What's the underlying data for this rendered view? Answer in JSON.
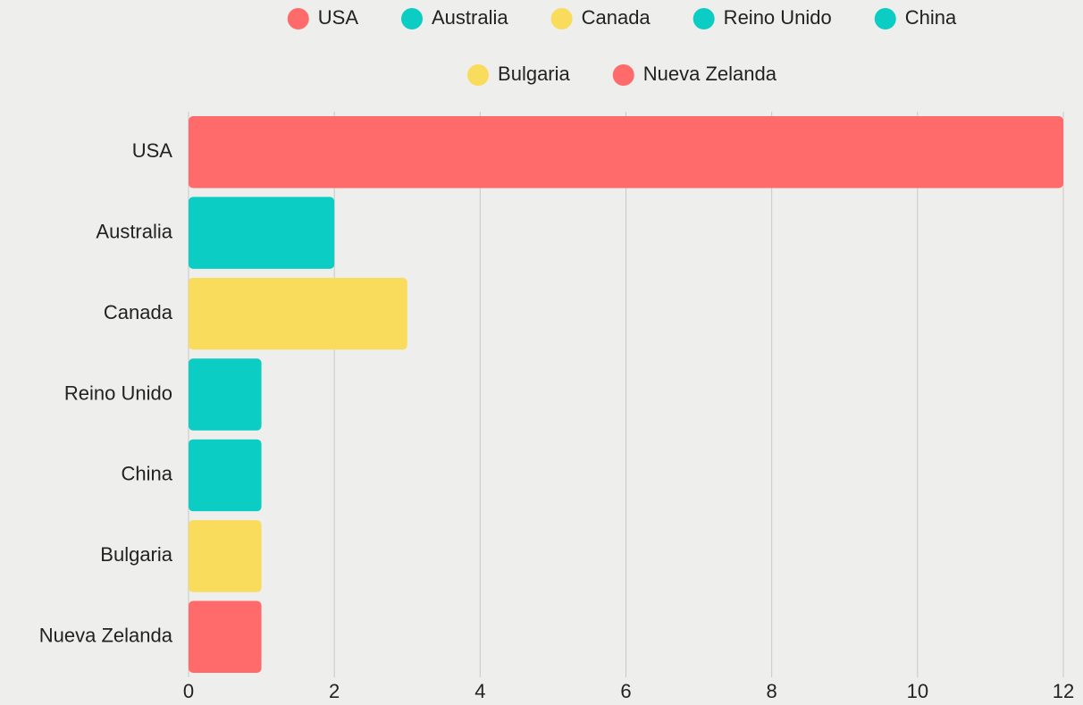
{
  "chart_data": {
    "type": "bar",
    "orientation": "horizontal",
    "categories": [
      "USA",
      "Australia",
      "Canada",
      "Reino Unido",
      "China",
      "Bulgaria",
      "Nueva Zelanda"
    ],
    "values": [
      12,
      2,
      3,
      1,
      1,
      1,
      1
    ],
    "colors": [
      "#ff6b6b",
      "#0bcdc4",
      "#f9dc5c",
      "#0bcdc4",
      "#0bcdc4",
      "#f9dc5c",
      "#ff6b6b"
    ],
    "xlim": [
      0,
      12
    ],
    "xticks": [
      0,
      2,
      4,
      6,
      8,
      10,
      12
    ],
    "grid": true,
    "legend": "top"
  }
}
